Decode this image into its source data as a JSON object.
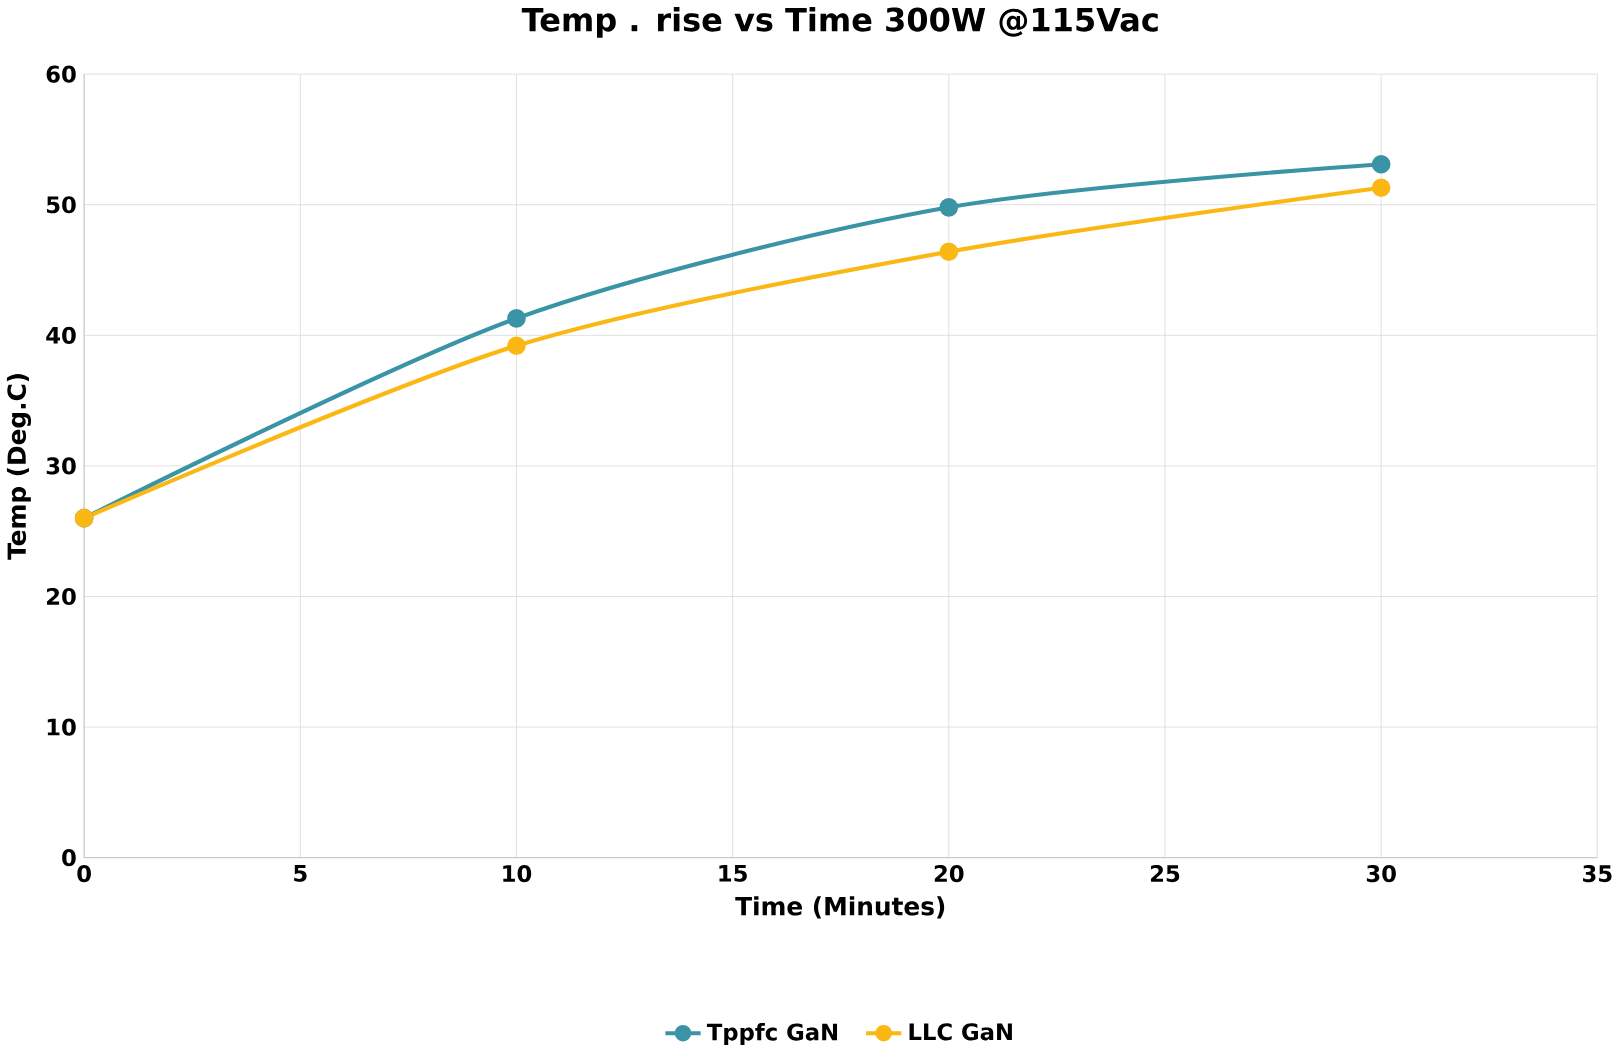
{
  "chart_data": {
    "type": "line",
    "title": "Temp . rise vs Time 300W @115Vac",
    "xlabel": "Time (Minutes)",
    "ylabel": "Temp (Deg.C)",
    "x": [
      0,
      10,
      20,
      30
    ],
    "series": [
      {
        "name": "Tppfc GaN",
        "color": "#3a94a6",
        "values": [
          26,
          41.3,
          49.8,
          53.1
        ]
      },
      {
        "name": "LLC  GaN",
        "color": "#fbb714",
        "values": [
          26,
          39.2,
          46.4,
          51.3
        ]
      }
    ],
    "xlim": [
      0,
      35
    ],
    "xticks": [
      0,
      5,
      10,
      15,
      20,
      25,
      30,
      35
    ],
    "ylim": [
      0,
      60
    ],
    "yticks": [
      0,
      10,
      20,
      30,
      40,
      50,
      60
    ],
    "grid": true,
    "legend": "bottom",
    "marker": "circle",
    "line_style": "solid"
  }
}
